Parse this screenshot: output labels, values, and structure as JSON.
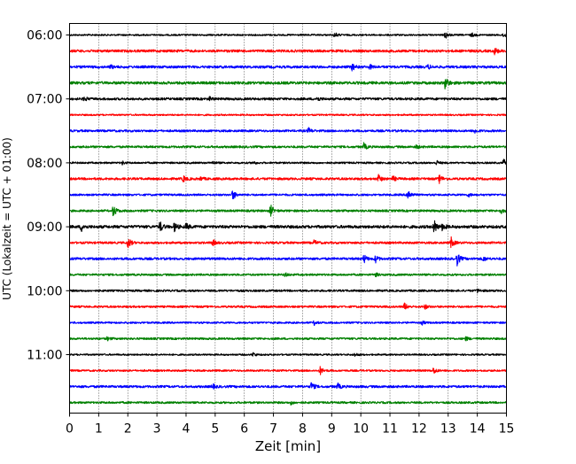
{
  "chart_data": {
    "type": "line",
    "title": "",
    "xlabel": "Zeit  [min]",
    "ylabel": "UTC (Lokalzeit = UTC + 01:00)",
    "xlim": [
      0,
      15
    ],
    "x_ticks": [
      "0",
      "1",
      "2",
      "3",
      "4",
      "5",
      "6",
      "7",
      "8",
      "9",
      "10",
      "11",
      "12",
      "13",
      "14",
      "15"
    ],
    "y_ticks": [
      "06:00",
      "07:00",
      "08:00",
      "09:00",
      "10:00",
      "11:00"
    ],
    "grid": "vertical-dotted",
    "legend": "none",
    "trace_start": "06:00",
    "trace_interval_min": 15,
    "color_cycle": [
      "#000000",
      "#ff0000",
      "#0000ff",
      "#008000"
    ],
    "series": [
      {
        "start": "06:00",
        "noise": 0.9,
        "events": [
          [
            9.1,
            3
          ],
          [
            12.9,
            4.5
          ],
          [
            13.8,
            2.5
          ],
          [
            14.9,
            3
          ]
        ]
      },
      {
        "start": "06:15",
        "noise": 1.4,
        "events": [
          [
            14.6,
            4
          ]
        ]
      },
      {
        "start": "06:30",
        "noise": 1.4,
        "events": [
          [
            1.4,
            2
          ],
          [
            9.7,
            4
          ],
          [
            10.3,
            2.5
          ],
          [
            12.3,
            2.5
          ]
        ]
      },
      {
        "start": "06:45",
        "noise": 1.5,
        "events": [
          [
            12.9,
            8
          ]
        ]
      },
      {
        "start": "07:00",
        "noise": 1.3,
        "events": [
          [
            0.5,
            2.5
          ],
          [
            4.8,
            2
          ],
          [
            8.5,
            2.5
          ]
        ]
      },
      {
        "start": "07:15",
        "noise": 0.9,
        "events": []
      },
      {
        "start": "07:30",
        "noise": 1.2,
        "events": [
          [
            8.2,
            3
          ],
          [
            13.9,
            2.5
          ]
        ]
      },
      {
        "start": "07:45",
        "noise": 1.2,
        "events": [
          [
            10.1,
            4
          ],
          [
            11.9,
            2
          ]
        ]
      },
      {
        "start": "08:00",
        "noise": 1.0,
        "events": [
          [
            1.8,
            2
          ],
          [
            4.9,
            2
          ],
          [
            6.3,
            2
          ],
          [
            12.6,
            2.5
          ],
          [
            14.9,
            4
          ]
        ]
      },
      {
        "start": "08:15",
        "noise": 1.3,
        "events": [
          [
            3.9,
            3.5
          ],
          [
            4.5,
            2
          ],
          [
            10.6,
            5
          ],
          [
            11.1,
            3
          ],
          [
            12.7,
            4.5
          ]
        ]
      },
      {
        "start": "08:30",
        "noise": 1.1,
        "events": [
          [
            5.6,
            6
          ],
          [
            11.6,
            8
          ],
          [
            13.7,
            2
          ]
        ]
      },
      {
        "start": "08:45",
        "noise": 1.2,
        "events": [
          [
            1.5,
            7
          ],
          [
            6.9,
            7
          ],
          [
            14.8,
            3
          ]
        ]
      },
      {
        "start": "09:00",
        "noise": 1.6,
        "events": [
          [
            0.4,
            5
          ],
          [
            3.1,
            6
          ],
          [
            3.6,
            5
          ],
          [
            4.0,
            3.5
          ],
          [
            12.5,
            9
          ],
          [
            12.8,
            4
          ]
        ]
      },
      {
        "start": "09:15",
        "noise": 1.2,
        "events": [
          [
            2.0,
            7
          ],
          [
            4.9,
            4.5
          ],
          [
            8.4,
            3
          ],
          [
            13.1,
            6
          ]
        ]
      },
      {
        "start": "09:30",
        "noise": 1.3,
        "events": [
          [
            10.1,
            5
          ],
          [
            10.5,
            4
          ],
          [
            13.3,
            8
          ],
          [
            14.2,
            2.5
          ]
        ]
      },
      {
        "start": "09:45",
        "noise": 1.1,
        "events": [
          [
            7.4,
            2
          ],
          [
            10.5,
            2
          ]
        ]
      },
      {
        "start": "10:00",
        "noise": 1.1,
        "events": [
          [
            14.0,
            2
          ]
        ]
      },
      {
        "start": "10:15",
        "noise": 1.1,
        "events": [
          [
            11.5,
            4
          ],
          [
            12.2,
            2.5
          ]
        ]
      },
      {
        "start": "10:30",
        "noise": 1.0,
        "events": [
          [
            8.4,
            2.5
          ],
          [
            12.1,
            2
          ]
        ]
      },
      {
        "start": "10:45",
        "noise": 1.1,
        "events": [
          [
            1.3,
            2
          ],
          [
            13.6,
            2
          ]
        ]
      },
      {
        "start": "11:00",
        "noise": 0.9,
        "events": [
          [
            6.3,
            2.5
          ],
          [
            9.8,
            2
          ]
        ]
      },
      {
        "start": "11:15",
        "noise": 1.0,
        "events": [
          [
            8.6,
            4.5
          ],
          [
            12.5,
            4
          ]
        ]
      },
      {
        "start": "11:30",
        "noise": 1.3,
        "events": [
          [
            4.9,
            3
          ],
          [
            8.3,
            5
          ],
          [
            9.2,
            3.5
          ]
        ]
      },
      {
        "start": "11:45",
        "noise": 1.1,
        "events": [
          [
            7.6,
            2
          ]
        ]
      }
    ]
  }
}
